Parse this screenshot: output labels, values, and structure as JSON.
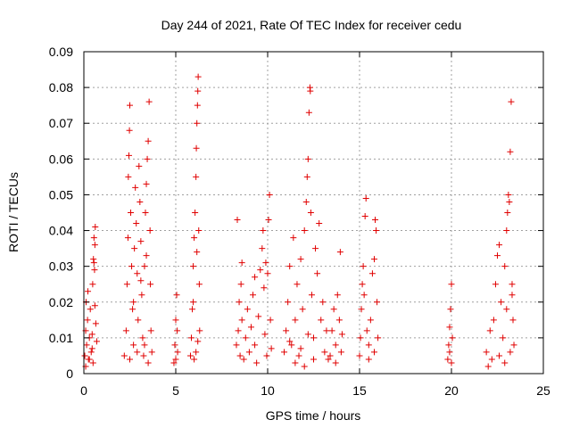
{
  "chart_data": {
    "type": "scatter",
    "title": "Day 244 of 2021, Rate Of TEC Index for receiver cedu",
    "xlabel": "GPS time / hours",
    "ylabel": "ROTI / TECUs",
    "xlim": [
      0,
      25
    ],
    "ylim": [
      0,
      0.09
    ],
    "xticks": [
      "0",
      "5",
      "10",
      "15",
      "20",
      "25"
    ],
    "yticks": [
      "0",
      "0.01",
      "0.02",
      "0.03",
      "0.04",
      "0.05",
      "0.06",
      "0.07",
      "0.08",
      "0.09"
    ],
    "xtick_values": [
      0,
      5,
      10,
      15,
      20,
      25
    ],
    "ytick_values": [
      0,
      0.01,
      0.02,
      0.03,
      0.04,
      0.05,
      0.06,
      0.07,
      0.08,
      0.09
    ],
    "grid": true,
    "marker": "+",
    "marker_color": "#e00000",
    "points": [
      [
        0.05,
        0.005
      ],
      [
        0.1,
        0.012
      ],
      [
        0.12,
        0.02
      ],
      [
        0.15,
        0.008
      ],
      [
        0.2,
        0.015
      ],
      [
        0.22,
        0.023
      ],
      [
        0.25,
        0.004
      ],
      [
        0.3,
        0.01
      ],
      [
        0.35,
        0.018
      ],
      [
        0.4,
        0.006
      ],
      [
        0.45,
        0.011
      ],
      [
        0.48,
        0.025
      ],
      [
        0.5,
        0.003
      ],
      [
        0.52,
        0.032
      ],
      [
        0.55,
        0.038
      ],
      [
        0.58,
        0.029
      ],
      [
        0.6,
        0.036
      ],
      [
        0.62,
        0.041
      ],
      [
        0.65,
        0.014
      ],
      [
        0.7,
        0.009
      ],
      [
        0.1,
        0.002
      ],
      [
        0.3,
        0.004
      ],
      [
        0.45,
        0.007
      ],
      [
        0.6,
        0.019
      ],
      [
        0.55,
        0.031
      ],
      [
        2.2,
        0.005
      ],
      [
        2.3,
        0.012
      ],
      [
        2.35,
        0.025
      ],
      [
        2.4,
        0.038
      ],
      [
        2.42,
        0.055
      ],
      [
        2.45,
        0.061
      ],
      [
        2.48,
        0.068
      ],
      [
        2.5,
        0.075
      ],
      [
        2.55,
        0.045
      ],
      [
        2.6,
        0.03
      ],
      [
        2.65,
        0.018
      ],
      [
        2.7,
        0.008
      ],
      [
        2.75,
        0.035
      ],
      [
        2.8,
        0.052
      ],
      [
        2.85,
        0.042
      ],
      [
        2.9,
        0.028
      ],
      [
        2.95,
        0.015
      ],
      [
        3.0,
        0.058
      ],
      [
        3.05,
        0.048
      ],
      [
        3.1,
        0.037
      ],
      [
        3.15,
        0.022
      ],
      [
        3.2,
        0.01
      ],
      [
        3.25,
        0.005
      ],
      [
        3.3,
        0.03
      ],
      [
        3.35,
        0.045
      ],
      [
        3.4,
        0.053
      ],
      [
        3.45,
        0.06
      ],
      [
        3.5,
        0.065
      ],
      [
        3.55,
        0.076
      ],
      [
        3.6,
        0.04
      ],
      [
        3.62,
        0.025
      ],
      [
        3.65,
        0.012
      ],
      [
        3.7,
        0.006
      ],
      [
        2.5,
        0.004
      ],
      [
        2.9,
        0.006
      ],
      [
        3.3,
        0.008
      ],
      [
        3.5,
        0.003
      ],
      [
        2.7,
        0.02
      ],
      [
        3.1,
        0.026
      ],
      [
        3.4,
        0.033
      ],
      [
        4.9,
        0.003
      ],
      [
        4.95,
        0.008
      ],
      [
        5.0,
        0.015
      ],
      [
        5.05,
        0.022
      ],
      [
        5.1,
        0.006
      ],
      [
        5.0,
        0.004
      ],
      [
        5.08,
        0.012
      ],
      [
        5.8,
        0.005
      ],
      [
        5.85,
        0.01
      ],
      [
        5.9,
        0.018
      ],
      [
        5.95,
        0.03
      ],
      [
        6.0,
        0.038
      ],
      [
        6.05,
        0.045
      ],
      [
        6.1,
        0.055
      ],
      [
        6.12,
        0.063
      ],
      [
        6.15,
        0.07
      ],
      [
        6.18,
        0.075
      ],
      [
        6.2,
        0.079
      ],
      [
        6.22,
        0.083
      ],
      [
        6.25,
        0.04
      ],
      [
        6.28,
        0.025
      ],
      [
        6.3,
        0.012
      ],
      [
        6.0,
        0.004
      ],
      [
        6.1,
        0.006
      ],
      [
        6.2,
        0.009
      ],
      [
        5.95,
        0.02
      ],
      [
        6.15,
        0.034
      ],
      [
        8.3,
        0.008
      ],
      [
        8.35,
        0.043
      ],
      [
        8.4,
        0.012
      ],
      [
        8.45,
        0.02
      ],
      [
        8.5,
        0.005
      ],
      [
        8.55,
        0.025
      ],
      [
        8.6,
        0.015
      ],
      [
        8.7,
        0.004
      ],
      [
        8.8,
        0.01
      ],
      [
        8.9,
        0.018
      ],
      [
        9.0,
        0.006
      ],
      [
        9.1,
        0.013
      ],
      [
        9.2,
        0.022
      ],
      [
        9.3,
        0.008
      ],
      [
        9.4,
        0.003
      ],
      [
        9.5,
        0.016
      ],
      [
        9.6,
        0.029
      ],
      [
        9.7,
        0.035
      ],
      [
        9.75,
        0.04
      ],
      [
        9.8,
        0.024
      ],
      [
        9.85,
        0.011
      ],
      [
        9.9,
        0.031
      ],
      [
        9.95,
        0.005
      ],
      [
        10.0,
        0.028
      ],
      [
        10.05,
        0.043
      ],
      [
        10.1,
        0.05
      ],
      [
        10.15,
        0.015
      ],
      [
        10.2,
        0.007
      ],
      [
        8.6,
        0.031
      ],
      [
        9.3,
        0.027
      ],
      [
        10.9,
        0.006
      ],
      [
        11.0,
        0.012
      ],
      [
        11.1,
        0.02
      ],
      [
        11.2,
        0.03
      ],
      [
        11.3,
        0.008
      ],
      [
        11.4,
        0.038
      ],
      [
        11.5,
        0.015
      ],
      [
        11.6,
        0.025
      ],
      [
        11.7,
        0.005
      ],
      [
        11.8,
        0.032
      ],
      [
        11.9,
        0.018
      ],
      [
        12.0,
        0.04
      ],
      [
        12.1,
        0.048
      ],
      [
        12.15,
        0.055
      ],
      [
        12.2,
        0.06
      ],
      [
        12.25,
        0.073
      ],
      [
        12.3,
        0.08
      ],
      [
        12.32,
        0.079
      ],
      [
        12.35,
        0.045
      ],
      [
        12.4,
        0.022
      ],
      [
        12.5,
        0.01
      ],
      [
        12.6,
        0.035
      ],
      [
        12.7,
        0.028
      ],
      [
        12.8,
        0.042
      ],
      [
        12.9,
        0.015
      ],
      [
        13.0,
        0.02
      ],
      [
        13.1,
        0.006
      ],
      [
        13.2,
        0.012
      ],
      [
        13.3,
        0.004
      ],
      [
        11.5,
        0.003
      ],
      [
        12.0,
        0.002
      ],
      [
        12.5,
        0.004
      ],
      [
        11.2,
        0.009
      ],
      [
        11.8,
        0.007
      ],
      [
        12.2,
        0.011
      ],
      [
        13.4,
        0.005
      ],
      [
        13.5,
        0.012
      ],
      [
        13.6,
        0.018
      ],
      [
        13.7,
        0.008
      ],
      [
        13.8,
        0.022
      ],
      [
        13.9,
        0.015
      ],
      [
        13.95,
        0.034
      ],
      [
        14.0,
        0.006
      ],
      [
        14.05,
        0.011
      ],
      [
        13.7,
        0.003
      ],
      [
        15.0,
        0.005
      ],
      [
        15.05,
        0.01
      ],
      [
        15.1,
        0.018
      ],
      [
        15.15,
        0.025
      ],
      [
        15.2,
        0.03
      ],
      [
        15.25,
        0.022
      ],
      [
        15.3,
        0.044
      ],
      [
        15.35,
        0.049
      ],
      [
        15.4,
        0.012
      ],
      [
        15.5,
        0.008
      ],
      [
        15.6,
        0.015
      ],
      [
        15.7,
        0.028
      ],
      [
        15.8,
        0.032
      ],
      [
        15.85,
        0.043
      ],
      [
        15.9,
        0.04
      ],
      [
        15.95,
        0.02
      ],
      [
        16.0,
        0.01
      ],
      [
        15.5,
        0.004
      ],
      [
        15.8,
        0.006
      ],
      [
        19.8,
        0.004
      ],
      [
        19.85,
        0.008
      ],
      [
        19.9,
        0.013
      ],
      [
        19.95,
        0.018
      ],
      [
        20.0,
        0.025
      ],
      [
        20.05,
        0.01
      ],
      [
        19.9,
        0.006
      ],
      [
        20.0,
        0.003
      ],
      [
        21.9,
        0.006
      ],
      [
        22.0,
        0.002
      ],
      [
        22.1,
        0.012
      ],
      [
        22.2,
        0.004
      ],
      [
        22.3,
        0.015
      ],
      [
        22.4,
        0.025
      ],
      [
        22.5,
        0.033
      ],
      [
        22.6,
        0.036
      ],
      [
        22.7,
        0.02
      ],
      [
        22.8,
        0.01
      ],
      [
        22.9,
        0.03
      ],
      [
        23.0,
        0.04
      ],
      [
        23.05,
        0.045
      ],
      [
        23.1,
        0.05
      ],
      [
        23.15,
        0.048
      ],
      [
        23.2,
        0.062
      ],
      [
        23.25,
        0.076
      ],
      [
        23.3,
        0.025
      ],
      [
        23.35,
        0.015
      ],
      [
        23.4,
        0.008
      ],
      [
        22.6,
        0.005
      ],
      [
        22.9,
        0.003
      ],
      [
        23.2,
        0.006
      ],
      [
        23.0,
        0.018
      ],
      [
        23.3,
        0.022
      ]
    ]
  }
}
